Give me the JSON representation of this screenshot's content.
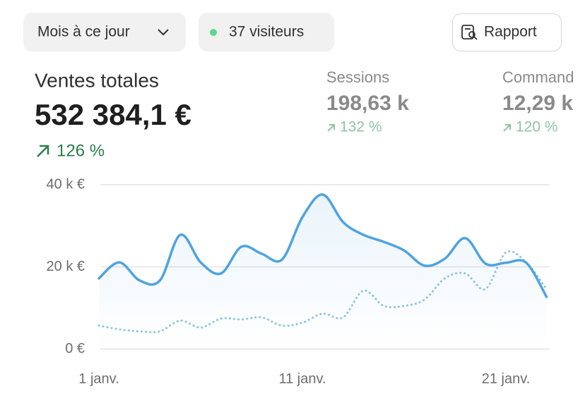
{
  "toolbar": {
    "period": "Mois à ce jour",
    "visitors": "37 visiteurs",
    "report": "Rapport"
  },
  "metrics": [
    {
      "label": "Ventes totales",
      "value": "532 384,1 €",
      "change": "126 %"
    },
    {
      "label": "Sessions",
      "value": "198,63 k",
      "change": "132 %"
    },
    {
      "label": "Command",
      "value": "12,29 k",
      "change": "120 %"
    }
  ],
  "chart_data": {
    "type": "line",
    "categories": [
      "1 janv.",
      null,
      null,
      null,
      null,
      null,
      null,
      null,
      null,
      null,
      "11 janv.",
      null,
      null,
      null,
      null,
      null,
      null,
      null,
      null,
      null,
      "21 janv.",
      null,
      null
    ],
    "series": [
      {
        "color": "#4fa3e0",
        "style": "solid",
        "values": [
          17.2,
          21.1,
          16.7,
          16.7,
          27.8,
          21.1,
          18.4,
          24.9,
          23.2,
          21.8,
          32.1,
          37.6,
          30.9,
          27.8,
          26.1,
          24.0,
          20.3,
          22.0,
          27.0,
          20.8,
          21.0,
          21.0,
          12.7
        ]
      },
      {
        "color": "#8cc4e0",
        "style": "dotted",
        "values": [
          5.7,
          4.8,
          4.3,
          4.3,
          6.9,
          5.2,
          7.4,
          7.2,
          7.7,
          5.7,
          6.4,
          8.6,
          7.7,
          14.2,
          10.5,
          10.5,
          12.0,
          17.2,
          18.4,
          14.6,
          23.5,
          21.1,
          14.6
        ]
      }
    ],
    "ylim": [
      0,
      40
    ],
    "yticks": [
      {
        "value": 0,
        "label": "0 €"
      },
      {
        "value": 20,
        "label": "20 k €"
      },
      {
        "value": 40,
        "label": "40 k €"
      }
    ],
    "grid": true
  }
}
